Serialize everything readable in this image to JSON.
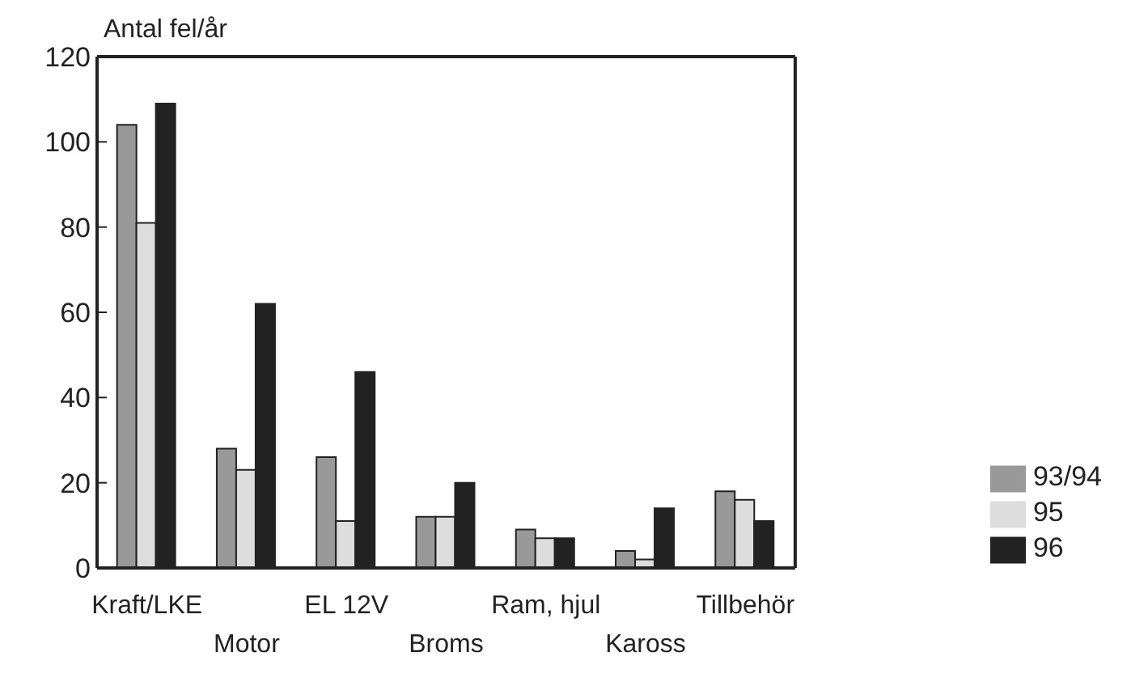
{
  "chart_data": {
    "type": "bar",
    "ylabel": "Antal fel/år",
    "categories": [
      "Kraft/LKE",
      "Motor",
      "EL 12V",
      "Broms",
      "Ram, hjul",
      "Kaross",
      "Tillbehör"
    ],
    "series": [
      {
        "name": "93/94",
        "color": "#999999",
        "values": [
          104,
          28,
          26,
          12,
          9,
          4,
          18
        ]
      },
      {
        "name": "95",
        "color": "#dddddd",
        "values": [
          81,
          23,
          11,
          12,
          7,
          2,
          16
        ]
      },
      {
        "name": "96",
        "color": "#222222",
        "values": [
          109,
          62,
          46,
          20,
          7,
          14,
          11
        ]
      }
    ],
    "ylim": [
      0,
      120
    ],
    "yticks": [
      0,
      20,
      40,
      60,
      80,
      100,
      120
    ],
    "grid": false,
    "legend": "right"
  }
}
